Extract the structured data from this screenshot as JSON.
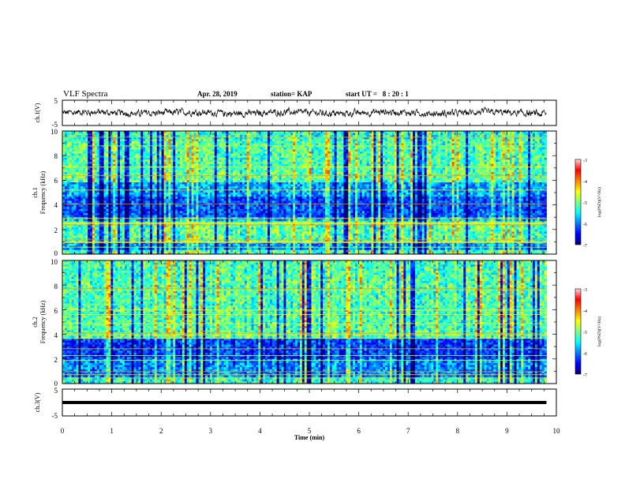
{
  "header": {
    "title": "VLF Spectra",
    "date": "Apr. 28, 2019",
    "station": "station= KAP",
    "start_ut": "start UT =   8 : 20 : 1"
  },
  "chart_data": [
    {
      "type": "line",
      "panel": "ch.1 waveform",
      "ylabel": "ch.1(V)",
      "ylim": [
        -5,
        5
      ],
      "ytick_labels": [
        "5",
        "-5"
      ],
      "xlim": [
        0,
        10
      ],
      "xlabel": "",
      "description_values": "noisy waveform oscillating roughly between -2 and 2 V over 0 to 9.8 min"
    },
    {
      "type": "heatmap",
      "panel": "ch.1 spectrogram",
      "ylabel_line1": "ch.1",
      "ylabel_line2": "Frequency (kHz)",
      "ylim": [
        0,
        10
      ],
      "ytick_labels": [
        "0",
        "2",
        "4",
        "6",
        "8",
        "10"
      ],
      "xlim": [
        0,
        10
      ],
      "data_end_min": 9.8,
      "colorbar": {
        "label": "log(PSD)(V²/Hz)",
        "range": [
          -7,
          -3
        ],
        "tick_labels": [
          "-3",
          "-4",
          "-5",
          "-6",
          "-7"
        ],
        "colors": [
          "#00007f",
          "#0000ff",
          "#007fff",
          "#00ffff",
          "#7fff7f",
          "#ffff00",
          "#ff7f00",
          "#ff0000",
          "#ffdcdc"
        ]
      }
    },
    {
      "type": "heatmap",
      "panel": "ch.2 spectrogram",
      "ylabel_line1": "ch.2",
      "ylabel_line2": "Frequency (kHz)",
      "ylim": [
        0,
        10
      ],
      "ytick_labels": [
        "0",
        "2",
        "4",
        "6",
        "8",
        "10"
      ],
      "xlim": [
        0,
        10
      ],
      "data_end_min": 9.8,
      "colorbar": {
        "label": "log(PSD)(V²/Hz)",
        "range": [
          -7,
          -3
        ],
        "tick_labels": [
          "-3",
          "-4",
          "-5",
          "-6",
          "-7"
        ],
        "colors": [
          "#00007f",
          "#0000ff",
          "#007fff",
          "#00ffff",
          "#7fff7f",
          "#ffff00",
          "#ff7f00",
          "#ff0000",
          "#ffdcdc"
        ]
      }
    },
    {
      "type": "line",
      "panel": "ch.3 waveform",
      "ylabel": "ch.3(V)",
      "ylim": [
        -5,
        5
      ],
      "ytick_labels": [
        "5",
        "-5"
      ],
      "xlim": [
        0,
        10
      ],
      "xlabel": "Time (min)",
      "xtick_labels": [
        "0",
        "1",
        "2",
        "3",
        "4",
        "5",
        "6",
        "7",
        "8",
        "9",
        "10"
      ],
      "constant_value": 0,
      "data_end_min": 9.8
    }
  ]
}
